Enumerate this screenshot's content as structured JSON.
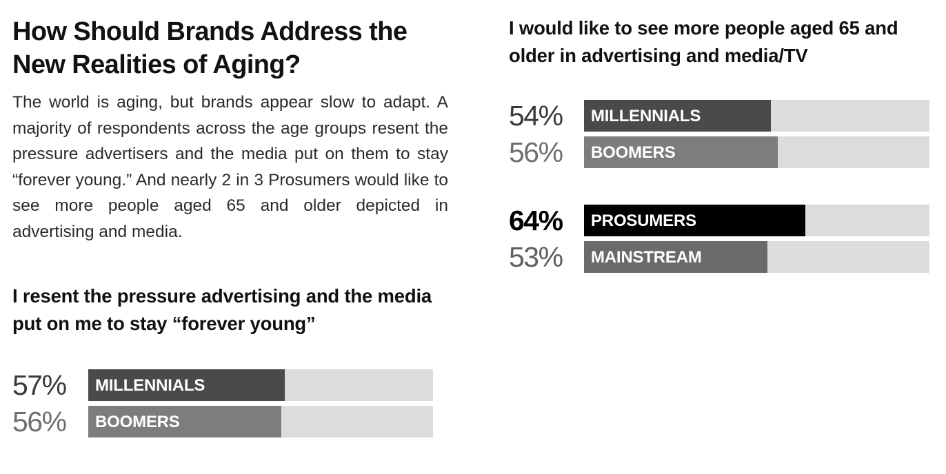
{
  "title": "How Should Brands Address the New Realities of Aging?",
  "intro": "The world is aging, but brands appear slow to adapt. A majority of respondents across the age groups resent the pressure advertisers and the media put on them to stay “forever young.” And nearly 2 in 3 Prosumers would like to see more people aged 65 and older depicted in advertising and media.",
  "chart_data": [
    {
      "type": "bar",
      "orientation": "horizontal",
      "title": "I resent the pressure advertising and the media put on me to stay “forever young”",
      "categories": [
        "MILLENNIALS",
        "BOOMERS"
      ],
      "values": [
        57,
        56
      ],
      "value_labels": [
        "57%",
        "56%"
      ],
      "colors": [
        "#4a4a4c",
        "#7d7d7e"
      ],
      "pct_colors": [
        "#3a3a3a",
        "#6f6f6f"
      ],
      "track_color": "#dcdcdd",
      "xlim": [
        0,
        100
      ],
      "groups": [
        [
          0,
          1
        ]
      ]
    },
    {
      "type": "bar",
      "orientation": "horizontal",
      "title": "I would like to see more people aged 65 and older in advertising and media/TV",
      "categories": [
        "MILLENNIALS",
        "BOOMERS",
        "PROSUMERS",
        "MAINSTREAM"
      ],
      "values": [
        54,
        56,
        64,
        53
      ],
      "value_labels": [
        "54%",
        "56%",
        "64%",
        "53%"
      ],
      "colors": [
        "#4a4a4c",
        "#7d7d7e",
        "#000000",
        "#6a6a6b"
      ],
      "pct_colors": [
        "#3a3a3a",
        "#6f6f6f",
        "#000000",
        "#5e5e5e"
      ],
      "track_color": "#dcdcdd",
      "xlim": [
        0,
        100
      ],
      "groups": [
        [
          0,
          1
        ],
        [
          2,
          3
        ]
      ]
    }
  ]
}
